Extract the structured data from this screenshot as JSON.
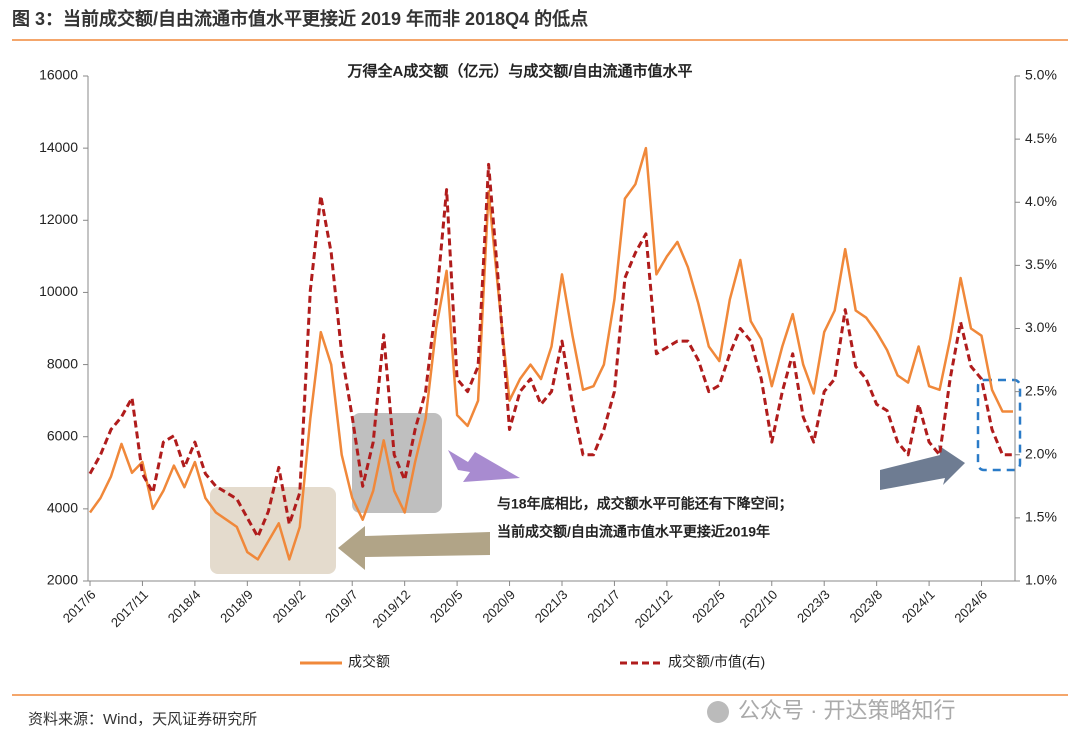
{
  "header": {
    "title": "图 3：当前成交额/自由流通市值水平更接近 2019 年而非 2018Q4 的低点"
  },
  "chart_data": {
    "type": "line",
    "title": "万得全A成交额（亿元）与成交额/自由流通市值水平",
    "categories": [
      "2017/6",
      null,
      null,
      null,
      null,
      "2017/11",
      null,
      null,
      null,
      null,
      "2018/4",
      null,
      null,
      null,
      null,
      "2018/9",
      null,
      null,
      null,
      null,
      "2019/2",
      null,
      null,
      null,
      null,
      "2019/7",
      null,
      null,
      null,
      null,
      "2019/12",
      null,
      null,
      null,
      null,
      "2020/5",
      null,
      null,
      null,
      null,
      "2020/9",
      null,
      null,
      null,
      null,
      "2021/3",
      null,
      null,
      null,
      null,
      "2021/7",
      null,
      null,
      null,
      null,
      "2021/12",
      null,
      null,
      null,
      null,
      "2022/5",
      null,
      null,
      null,
      null,
      "2022/10",
      null,
      null,
      null,
      null,
      "2023/3",
      null,
      null,
      null,
      null,
      "2023/8",
      null,
      null,
      null,
      null,
      "2024/1",
      null,
      null,
      null,
      null,
      "2024/6",
      null,
      null,
      null
    ],
    "series": [
      {
        "name": "成交额",
        "color": "#f0883a",
        "dash": false,
        "values": [
          3900,
          4300,
          4900,
          5800,
          5000,
          5300,
          4000,
          4500,
          5200,
          4600,
          5300,
          4300,
          3900,
          3700,
          3500,
          2800,
          2600,
          3100,
          3600,
          2600,
          3500,
          6500,
          8900,
          8000,
          5500,
          4300,
          3700,
          4500,
          5900,
          4500,
          3900,
          5300,
          6500,
          9000,
          10600,
          6600,
          6300,
          7000,
          12800,
          9800,
          7000,
          7600,
          8000,
          7600,
          8500,
          10500,
          8800,
          7300,
          7400,
          8000,
          9800,
          12600,
          13000,
          14000,
          10500,
          11000,
          11400,
          10700,
          9700,
          8500,
          8100,
          9800,
          10900,
          9200,
          8700,
          7400,
          8500,
          9400,
          8000,
          7200,
          8900,
          9500,
          11200,
          9500,
          9300,
          8900,
          8400,
          7700,
          7500,
          8500,
          7400,
          7300,
          8700,
          10400,
          9000,
          8800,
          7300,
          6700,
          6700
        ]
      },
      {
        "name": "成交额/市值(右)",
        "color": "#b01c1c",
        "dash": true,
        "axis": "y2",
        "values": [
          1.85,
          2.0,
          2.2,
          2.3,
          2.45,
          1.85,
          1.7,
          2.1,
          2.15,
          1.9,
          2.1,
          1.85,
          1.75,
          1.7,
          1.65,
          1.5,
          1.35,
          1.55,
          1.9,
          1.45,
          1.7,
          3.3,
          4.05,
          3.6,
          2.8,
          2.3,
          1.75,
          2.1,
          2.95,
          2.0,
          1.8,
          2.2,
          2.5,
          3.2,
          4.1,
          2.6,
          2.5,
          2.7,
          4.3,
          3.3,
          2.2,
          2.5,
          2.6,
          2.4,
          2.5,
          2.9,
          2.4,
          2.0,
          2.0,
          2.2,
          2.5,
          3.4,
          3.6,
          3.75,
          2.8,
          2.85,
          2.9,
          2.9,
          2.75,
          2.5,
          2.55,
          2.8,
          3.0,
          2.9,
          2.6,
          2.1,
          2.5,
          2.8,
          2.3,
          2.1,
          2.5,
          2.6,
          3.15,
          2.7,
          2.6,
          2.4,
          2.35,
          2.1,
          2.0,
          2.4,
          2.1,
          2.0,
          2.6,
          3.05,
          2.7,
          2.6,
          2.2,
          2.0,
          2.0
        ]
      }
    ],
    "ylim": [
      2000,
      16000
    ],
    "yticks": [
      2000,
      4000,
      6000,
      8000,
      10000,
      12000,
      14000,
      16000
    ],
    "y2lim": [
      1.0,
      5.0
    ],
    "y2ticks": [
      {
        "value": 1.0,
        "label": "1.0%"
      },
      {
        "value": 1.5,
        "label": "1.5%"
      },
      {
        "value": 2.0,
        "label": "2.0%"
      },
      {
        "value": 2.5,
        "label": "2.5%"
      },
      {
        "value": 3.0,
        "label": "3.0%"
      },
      {
        "value": 3.5,
        "label": "3.5%"
      },
      {
        "value": 4.0,
        "label": "4.0%"
      },
      {
        "value": 4.5,
        "label": "4.5%"
      },
      {
        "value": 5.0,
        "label": "5.0%"
      }
    ],
    "annotations": [
      "与18年底相比，成交额水平可能还有下降空间；",
      "当前成交额/自由流通市值水平更接近2019年"
    ]
  },
  "footer": {
    "source": "资料来源：Wind，天风证券研究所",
    "watermark": "公众号 · 开达策略知行"
  }
}
